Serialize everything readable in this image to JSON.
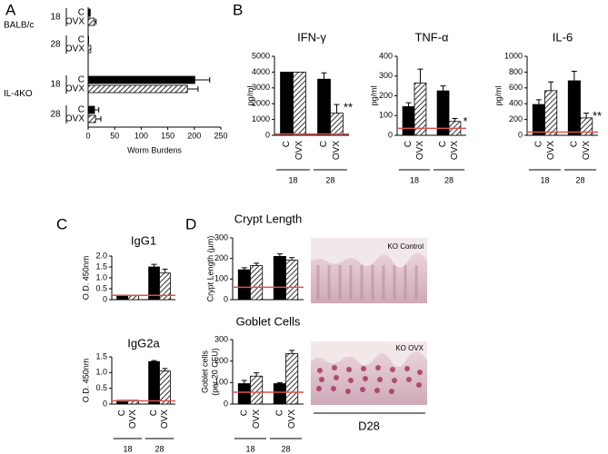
{
  "chart_data": [
    {
      "type": "bar",
      "orientation": "horizontal",
      "panel": "A",
      "categories": [
        "18",
        "28",
        "18",
        "28"
      ],
      "strains": [
        "BALB/c",
        "IL-4KO"
      ],
      "xlabel": "Worm Burdens",
      "xlim": [
        0,
        250
      ],
      "xticks": [
        0,
        50,
        100,
        150,
        200,
        250
      ],
      "series": [
        {
          "name": "C",
          "color": "#000000",
          "values": [
            4,
            1,
            201,
            12
          ],
          "errors": [
            null,
            null,
            28,
            8
          ]
        },
        {
          "name": "OVX",
          "color": "#000000",
          "pattern": "hatch",
          "values": [
            12,
            5,
            187,
            14
          ],
          "errors": [
            3,
            null,
            20,
            10
          ]
        }
      ]
    },
    {
      "type": "bar",
      "panel": "B",
      "title": "IFN-γ",
      "ylabel": "pg/ml",
      "categories": [
        "18",
        "28"
      ],
      "ylim": [
        0,
        5000
      ],
      "yticks": [
        0,
        1000,
        2000,
        3000,
        4000,
        5000
      ],
      "reference_line": 80,
      "reference_color": "#d9534f",
      "series": [
        {
          "name": "C",
          "color": "#000000",
          "values": [
            4000,
            3550
          ],
          "errors": [
            null,
            400
          ]
        },
        {
          "name": "OVX",
          "color": "#000000",
          "pattern": "hatch",
          "values": [
            4000,
            1400
          ],
          "errors": [
            null,
            550
          ],
          "significance": [
            null,
            "**"
          ]
        }
      ]
    },
    {
      "type": "bar",
      "title": "TNF-α",
      "ylabel": "pg/ml",
      "categories": [
        "18",
        "28"
      ],
      "ylim": [
        0,
        400
      ],
      "yticks": [
        0,
        100,
        200,
        300,
        400
      ],
      "reference_line": 35,
      "reference_color": "#d9534f",
      "series": [
        {
          "name": "C",
          "color": "#000000",
          "values": [
            145,
            225
          ],
          "errors": [
            20,
            25
          ]
        },
        {
          "name": "OVX",
          "color": "#000000",
          "pattern": "hatch",
          "values": [
            265,
            70
          ],
          "errors": [
            70,
            15
          ],
          "significance": [
            null,
            "*"
          ]
        }
      ]
    },
    {
      "type": "bar",
      "title": "IL-6",
      "ylabel": "pg/ml",
      "categories": [
        "18",
        "28"
      ],
      "ylim": [
        0,
        1000
      ],
      "yticks": [
        0,
        200,
        400,
        600,
        800,
        1000
      ],
      "reference_line": 40,
      "reference_color": "#d9534f",
      "series": [
        {
          "name": "C",
          "color": "#000000",
          "values": [
            390,
            690
          ],
          "errors": [
            60,
            120
          ]
        },
        {
          "name": "OVX",
          "color": "#000000",
          "pattern": "hatch",
          "values": [
            565,
            220
          ],
          "errors": [
            110,
            60
          ],
          "significance": [
            null,
            "**"
          ]
        }
      ]
    },
    {
      "type": "bar",
      "panel": "C",
      "title": "IgG1",
      "ylabel": "O.D. 450nm",
      "ylim": [
        0,
        2
      ],
      "yticks": [
        0,
        0.5,
        {
          "value": 1,
          "label": "1.0"
        },
        1.5,
        {
          "value": 2,
          "label": "2.0"
        }
      ],
      "reference_line": 0.2,
      "reference_color": "#d9534f",
      "series": [
        {
          "color": "#000000",
          "values": [
            0.18,
            1.5
          ],
          "errors": [
            null,
            0.12
          ]
        },
        {
          "color": "#000000",
          "pattern": "hatch",
          "values": [
            0.18,
            1.22
          ],
          "errors": [
            null,
            0.18
          ]
        }
      ]
    },
    {
      "type": "bar",
      "title": "IgG2a",
      "ylabel": "O.D. 450nm",
      "categories": [
        "18",
        "28"
      ],
      "ylim": [
        0,
        1.5
      ],
      "yticks": [
        0,
        0.5,
        {
          "value": 1,
          "label": "1.0"
        },
        1.5
      ],
      "reference_line": 0.1,
      "reference_color": "#d9534f",
      "series": [
        {
          "name": "C",
          "color": "#000000",
          "values": [
            0.12,
            1.35
          ],
          "errors": [
            null,
            0.03
          ]
        },
        {
          "name": "OVX",
          "color": "#000000",
          "pattern": "hatch",
          "values": [
            0.12,
            1.05
          ],
          "errors": [
            null,
            0.08
          ]
        }
      ]
    },
    {
      "type": "bar",
      "panel": "D",
      "title": "Crypt Length",
      "ylabel": "Crypt Length (µm)",
      "ylim": [
        0,
        300
      ],
      "yticks": [
        0,
        100,
        200,
        300
      ],
      "reference_line": 60,
      "reference_color": "#d9534f",
      "series": [
        {
          "color": "#000000",
          "values": [
            145,
            210
          ],
          "errors": [
            10,
            12
          ]
        },
        {
          "color": "#000000",
          "pattern": "hatch",
          "values": [
            165,
            192
          ],
          "errors": [
            12,
            12
          ]
        }
      ]
    },
    {
      "type": "bar",
      "title": "Goblet Cells",
      "ylabel": [
        "Goblet cells",
        "(per 20 CFU)"
      ],
      "categories": [
        "18",
        "28"
      ],
      "ylim": [
        0,
        300
      ],
      "yticks": [
        0,
        100,
        200,
        300
      ],
      "reference_line": 55,
      "reference_color": "#d9534f",
      "series": [
        {
          "name": "C",
          "color": "#000000",
          "values": [
            95,
            95
          ],
          "errors": [
            15,
            5
          ]
        },
        {
          "name": "OVX",
          "color": "#000000",
          "pattern": "hatch",
          "values": [
            130,
            235
          ],
          "errors": [
            15,
            15
          ]
        }
      ]
    }
  ],
  "images": [
    {
      "label": "KO Control"
    },
    {
      "label": "KO OVX"
    }
  ],
  "images_caption": "D28"
}
